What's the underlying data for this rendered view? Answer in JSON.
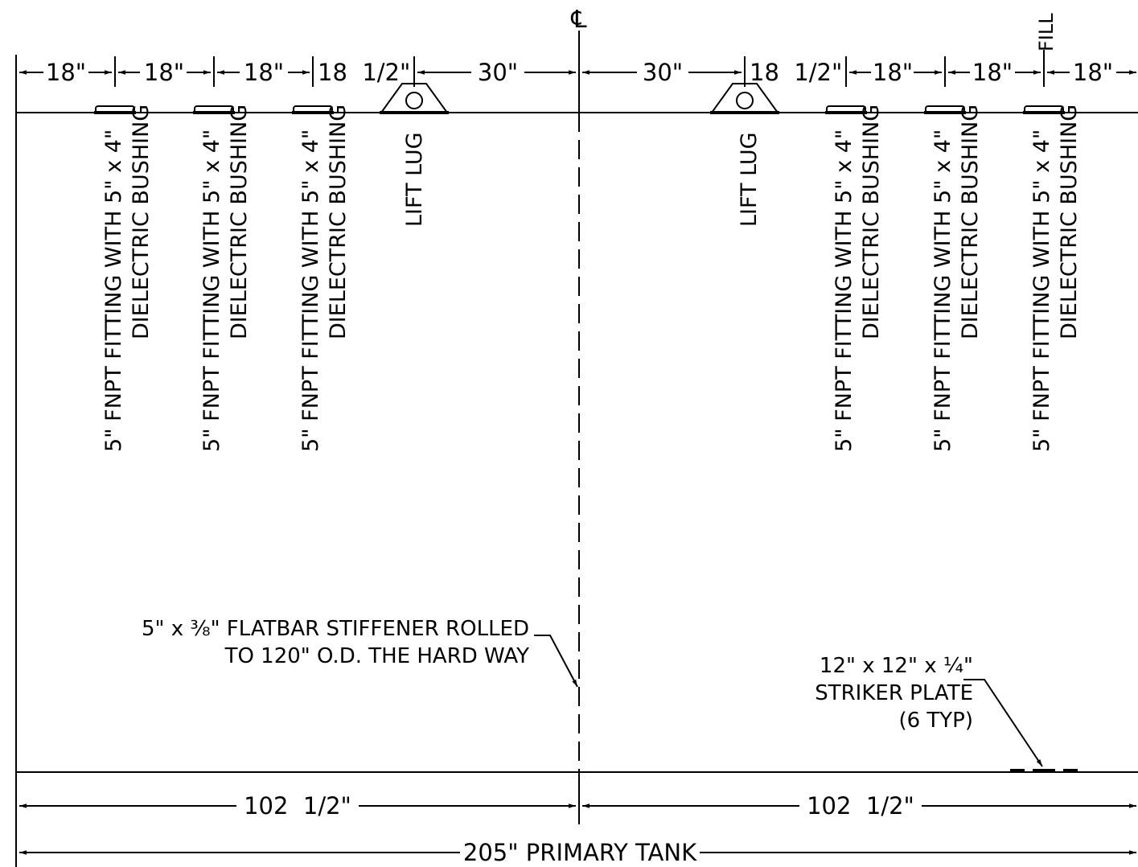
{
  "centerline_symbol": "℄",
  "top_dims": {
    "d1": "18\"",
    "d2": "18\"",
    "d3": "18\"",
    "d4": "18  1/2\"",
    "d5": "30\"",
    "d6": "30\"",
    "d7": "18  1/2\"",
    "d8": "18\"",
    "d9": "18\"",
    "d10": "18\""
  },
  "fill_label": "FILL",
  "fitting_label": {
    "line1": "5\" FNPT FITTING WITH 5\" x 4\"",
    "line2": "DIELECTRIC BUSHING"
  },
  "lift_lug_label": "LIFT LUG",
  "stiffener_note": {
    "line1": "5\" x ⅜\" FLATBAR STIFFENER ROLLED",
    "line2": "TO 120\" O.D. THE HARD WAY"
  },
  "striker_note": {
    "line1": "12\" x 12\" x ¼\"",
    "line2": "STRIKER PLATE",
    "line3": "(6 TYP)"
  },
  "bottom_dims": {
    "left_half": "102  1/2\"",
    "right_half": "102  1/2\"",
    "overall": "205\" PRIMARY TANK"
  }
}
